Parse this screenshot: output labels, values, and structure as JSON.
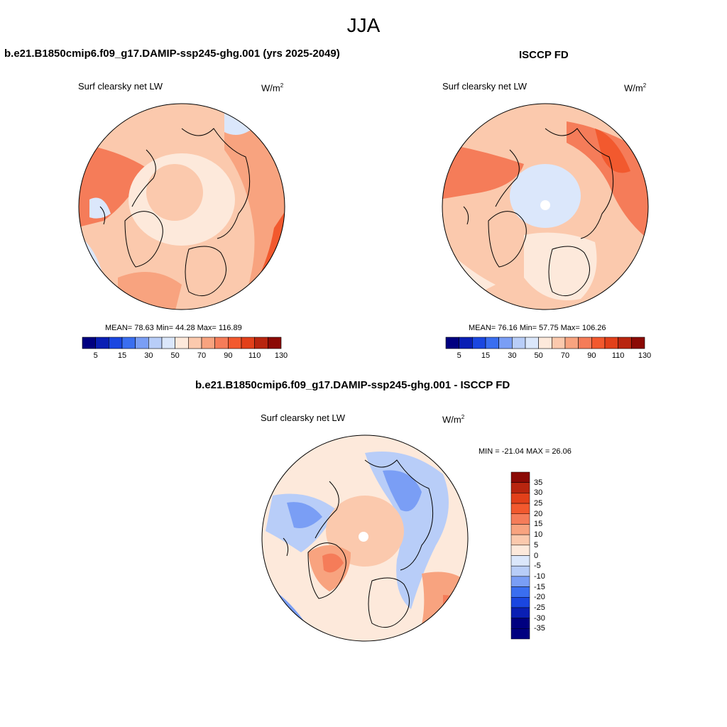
{
  "figure": {
    "title": "JJA"
  },
  "panels": [
    {
      "id": "model",
      "title": "b.e21.B1850cmip6.f09_g17.DAMIP-ssp245-ghg.001 (yrs 2025-2049)",
      "variable": "Surf clearsky net LW",
      "units": "W/m",
      "units_sup": "2",
      "stats_text": "MEAN=  78.63  Min=  44.28  Max= 116.89",
      "stats": {
        "mean": 78.63,
        "min": 44.28,
        "max": 116.89
      }
    },
    {
      "id": "obs",
      "title": "ISCCP FD",
      "variable": "Surf clearsky net LW",
      "units": "W/m",
      "units_sup": "2",
      "stats_text": "MEAN=  76.16  Min=  57.75  Max= 106.26",
      "stats": {
        "mean": 76.16,
        "min": 57.75,
        "max": 106.26
      }
    },
    {
      "id": "diff",
      "title": "b.e21.B1850cmip6.f09_g17.DAMIP-ssp245-ghg.001 - ISCCP FD",
      "variable": "Surf clearsky net LW",
      "units": "W/m",
      "units_sup": "2",
      "stats_text": "MIN = -21.04 MAX =  26.06",
      "stats": {
        "min": -21.04,
        "max": 26.06
      }
    }
  ],
  "colorbars": {
    "horizontal": {
      "tick_labels": [
        "5",
        "15",
        "30",
        "50",
        "70",
        "90",
        "110",
        "130"
      ],
      "colors": [
        "#000080",
        "#0a1fb4",
        "#1a46e0",
        "#3a6ef0",
        "#7a9ef5",
        "#b8cdf8",
        "#dbe7fb",
        "#fde9db",
        "#fbc9ad",
        "#f8a37f",
        "#f57c59",
        "#f2592e",
        "#e2401a",
        "#b8250f",
        "#8b0a05"
      ]
    },
    "vertical": {
      "tick_labels": [
        "35",
        "30",
        "25",
        "20",
        "15",
        "10",
        "5",
        "0",
        "-5",
        "-10",
        "-15",
        "-20",
        "-25",
        "-30",
        "-35"
      ],
      "colors": [
        "#8b0a05",
        "#b8250f",
        "#e2401a",
        "#f2592e",
        "#f57c59",
        "#f8a37f",
        "#fbc9ad",
        "#fde9db",
        "#dbe7fb",
        "#b8cdf8",
        "#7a9ef5",
        "#3a6ef0",
        "#1a46e0",
        "#0a1fb4",
        "#000080",
        "#000080"
      ]
    }
  }
}
